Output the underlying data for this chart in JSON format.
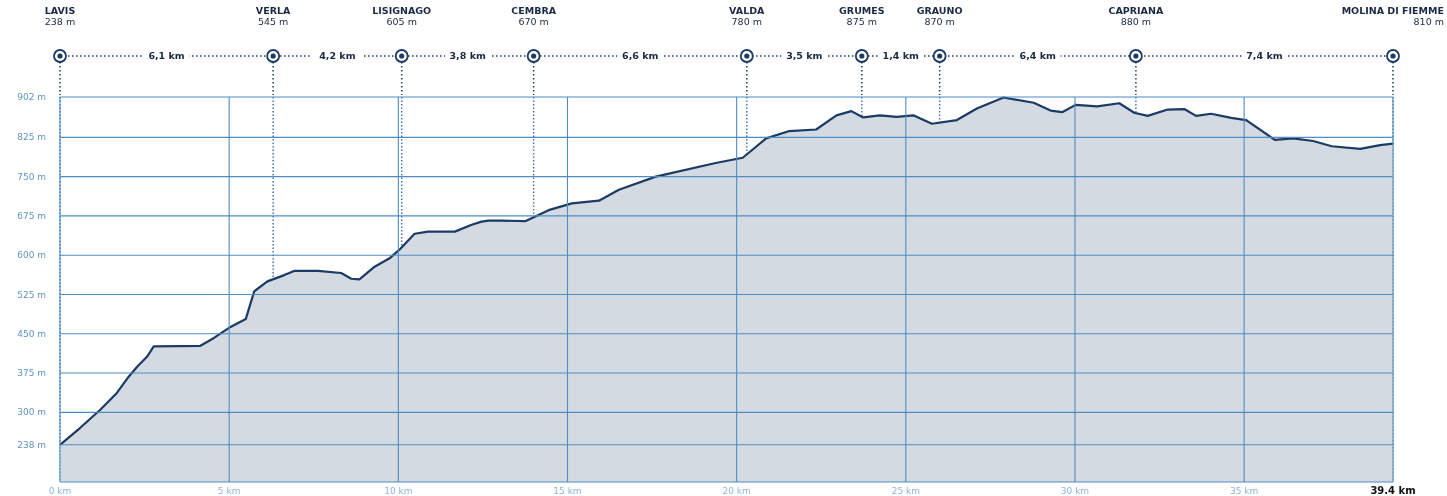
{
  "chart_data": {
    "type": "area",
    "x": [
      0,
      0.59,
      1.19,
      1.68,
      2.03,
      2.28,
      2.57,
      2.77,
      4.15,
      4.55,
      5.04,
      5.49,
      5.74,
      6.13,
      6.63,
      6.92,
      7.62,
      8.31,
      8.61,
      8.85,
      9.3,
      9.74,
      10.04,
      10.48,
      10.88,
      11.67,
      12.17,
      12.46,
      12.66,
      13.06,
      13.75,
      14.44,
      15.13,
      15.93,
      16.52,
      17.61,
      19.38,
      20.18,
      20.87,
      21.56,
      22.35,
      22.95,
      23.39,
      23.74,
      24.23,
      24.73,
      25.22,
      25.77,
      26.51,
      27.1,
      27.89,
      28.78,
      29.28,
      29.62,
      30.02,
      30.66,
      31.31,
      31.75,
      32.15,
      32.74,
      33.23,
      33.58,
      34.02,
      34.62,
      35.06,
      35.91,
      36.45,
      37.04,
      37.59,
      38.43,
      39.02,
      39.4
    ],
    "series": [
      {
        "color": "#1b3a64",
        "values": [
          238,
          270,
          305,
          337,
          368,
          387,
          406,
          426,
          427,
          442,
          463,
          478,
          531,
          550,
          562,
          570,
          570,
          566,
          555,
          554,
          578,
          594,
          611,
          641,
          645,
          645,
          658,
          664,
          666,
          666,
          665,
          686,
          699,
          704,
          725,
          750,
          776,
          786,
          823,
          837,
          840,
          867,
          875,
          863,
          867,
          864,
          867,
          851,
          858,
          880,
          901,
          891,
          876,
          873,
          887,
          884,
          890,
          872,
          866,
          878,
          879,
          866,
          870,
          862,
          858,
          820,
          823,
          818,
          808,
          803,
          810,
          813
        ]
      }
    ],
    "xlim": [
      0,
      39.4
    ],
    "xticks": [
      {
        "value": 0,
        "label": "0 km"
      },
      {
        "value": 5,
        "label": "5 km"
      },
      {
        "value": 10,
        "label": "10 km"
      },
      {
        "value": 15,
        "label": "15 km"
      },
      {
        "value": 20,
        "label": "20 km"
      },
      {
        "value": 25,
        "label": "25 km"
      },
      {
        "value": 30,
        "label": "30 km"
      },
      {
        "value": 35,
        "label": "35 km"
      },
      {
        "value": 39.4,
        "label": "39.4 km"
      }
    ],
    "ylim": [
      167,
      902
    ],
    "yticks": [
      {
        "value": 238,
        "label": "238 m"
      },
      {
        "value": 300,
        "label": "300 m"
      },
      {
        "value": 375,
        "label": "375 m"
      },
      {
        "value": 450,
        "label": "450 m"
      },
      {
        "value": 525,
        "label": "525 m"
      },
      {
        "value": 600,
        "label": "600 m"
      },
      {
        "value": 675,
        "label": "675 m"
      },
      {
        "value": 750,
        "label": "750 m"
      },
      {
        "value": 825,
        "label": "825 m"
      },
      {
        "value": 902,
        "label": "902 m"
      }
    ],
    "grid": true,
    "ref_lines": [
      {
        "axis": "x",
        "value": 0,
        "line_style": "dotted"
      },
      {
        "axis": "x",
        "value": 6.3,
        "line_style": "dotted"
      },
      {
        "axis": "x",
        "value": 10.1,
        "line_style": "dotted"
      },
      {
        "axis": "x",
        "value": 14.0,
        "line_style": "dotted"
      },
      {
        "axis": "x",
        "value": 20.3,
        "line_style": "dotted"
      },
      {
        "axis": "x",
        "value": 23.7,
        "line_style": "dotted"
      },
      {
        "axis": "x",
        "value": 26.0,
        "line_style": "dotted"
      },
      {
        "axis": "x",
        "value": 31.8,
        "line_style": "dotted"
      },
      {
        "axis": "x",
        "value": 39.4,
        "line_style": "dotted"
      }
    ],
    "annotations": [
      "LAVIS\n238 m",
      "VERLA\n545 m",
      "LISIGNAGO\n605 m",
      "CEMBRA\n670 m",
      "VALDA\n780 m",
      "GRUMES\n875 m",
      "GRAUNO\n870 m",
      "CAPRIANA\n880 m",
      "MOLINA DI FIEMME\n810 m",
      "6,1 km",
      "4,2  km",
      "3,8 km",
      "6,6 km",
      "3,5 km",
      "1,4 km",
      "6,4 km",
      "7,4 km"
    ]
  }
}
